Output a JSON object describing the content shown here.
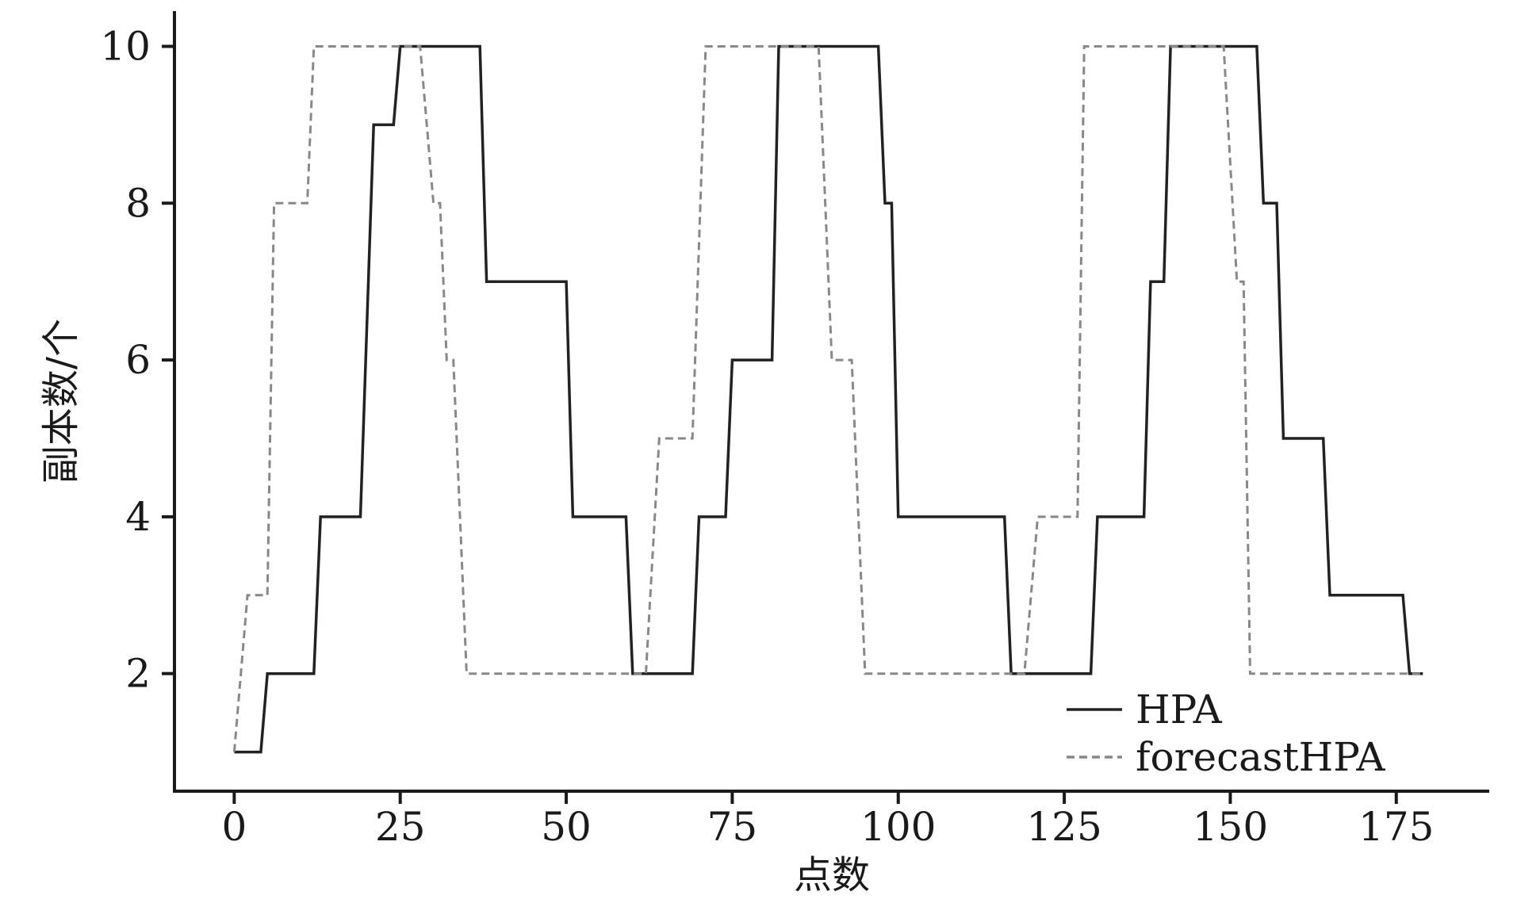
{
  "chart_data": {
    "type": "line",
    "title": "",
    "xlabel": "点数",
    "ylabel": "副本数/个",
    "xlim": [
      -9,
      189
    ],
    "ylim": [
      0.5,
      10.45
    ],
    "xticks": [
      0,
      25,
      50,
      75,
      100,
      125,
      150,
      175
    ],
    "xtick_labels": [
      "0",
      "25",
      "50",
      "75",
      "100",
      "125",
      "150",
      "175"
    ],
    "yticks": [
      2,
      4,
      6,
      8,
      10
    ],
    "ytick_labels": [
      "2",
      "4",
      "6",
      "8",
      "10"
    ],
    "grid": false,
    "legend_position": "bottom-right",
    "series": [
      {
        "name": "HPA",
        "style": "solid",
        "color": "#222222",
        "points": [
          [
            0,
            1
          ],
          [
            4,
            1
          ],
          [
            5,
            2
          ],
          [
            12,
            2
          ],
          [
            13,
            4
          ],
          [
            19,
            4
          ],
          [
            21,
            9
          ],
          [
            24,
            9
          ],
          [
            25,
            10
          ],
          [
            37,
            10
          ],
          [
            38,
            7
          ],
          [
            50,
            7
          ],
          [
            51,
            4
          ],
          [
            59,
            4
          ],
          [
            60,
            2
          ],
          [
            69,
            2
          ],
          [
            70,
            4
          ],
          [
            74,
            4
          ],
          [
            75,
            6
          ],
          [
            81,
            6
          ],
          [
            82,
            10
          ],
          [
            97,
            10
          ],
          [
            98,
            8
          ],
          [
            99,
            8
          ],
          [
            100,
            4
          ],
          [
            116,
            4
          ],
          [
            117,
            2
          ],
          [
            129,
            2
          ],
          [
            130,
            4
          ],
          [
            137,
            4
          ],
          [
            138,
            7
          ],
          [
            140,
            7
          ],
          [
            141,
            10
          ],
          [
            154,
            10
          ],
          [
            155,
            8
          ],
          [
            157,
            8
          ],
          [
            158,
            5
          ],
          [
            164,
            5
          ],
          [
            165,
            3
          ],
          [
            176,
            3
          ],
          [
            177,
            2
          ],
          [
            179,
            2
          ]
        ]
      },
      {
        "name": "forecastHPA",
        "style": "dashed",
        "color": "#888888",
        "points": [
          [
            0,
            1
          ],
          [
            2,
            3
          ],
          [
            5,
            3
          ],
          [
            6,
            8
          ],
          [
            11,
            8
          ],
          [
            12,
            10
          ],
          [
            28,
            10
          ],
          [
            30,
            8
          ],
          [
            31,
            8
          ],
          [
            32,
            6
          ],
          [
            33,
            6
          ],
          [
            35,
            2
          ],
          [
            62,
            2
          ],
          [
            64,
            5
          ],
          [
            69,
            5
          ],
          [
            71,
            10
          ],
          [
            88,
            10
          ],
          [
            90,
            6
          ],
          [
            93,
            6
          ],
          [
            95,
            2
          ],
          [
            119,
            2
          ],
          [
            121,
            4
          ],
          [
            127,
            4
          ],
          [
            128,
            10
          ],
          [
            149,
            10
          ],
          [
            151,
            7
          ],
          [
            152,
            7
          ],
          [
            153,
            2
          ],
          [
            179,
            2
          ]
        ]
      }
    ]
  }
}
